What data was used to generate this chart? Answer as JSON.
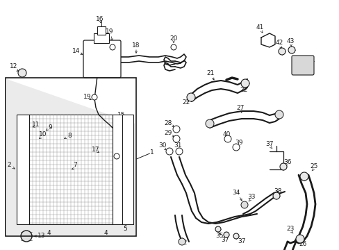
{
  "bg_color": "#ffffff",
  "line_color": "#1a1a1a",
  "text_color": "#1a1a1a",
  "font_size": 6.5,
  "bold_font_size": 7.0
}
